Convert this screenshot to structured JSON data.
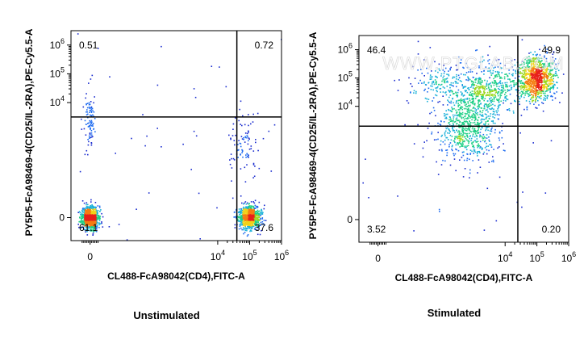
{
  "watermark": "WWW.PTGLAB.COM",
  "chart_data": [
    {
      "type": "scatter",
      "title": "",
      "caption": "Unstimulated",
      "xlabel": "CL488-FcA98042(CD4),FITC-A",
      "ylabel": "PY5P5-FcA98469-4(CD25/IL-2RA),PE-Cy5.5-A",
      "xlim": [
        -0.6,
        6
      ],
      "ylim": [
        -0.8,
        6.5
      ],
      "x_ticks": [
        {
          "value": 0,
          "label": "0"
        },
        {
          "value": 4,
          "label": "10^4"
        },
        {
          "value": 5,
          "label": "10^5"
        },
        {
          "value": 6,
          "label": "10^6"
        }
      ],
      "y_ticks": [
        {
          "value": 0,
          "label": "0"
        },
        {
          "value": 4,
          "label": "10^4"
        },
        {
          "value": 5,
          "label": "10^5"
        },
        {
          "value": 6,
          "label": "10^6"
        }
      ],
      "gate": {
        "x": 4.6,
        "y": 3.5
      },
      "quadrants": [
        {
          "position": "top-left",
          "value": "0.51"
        },
        {
          "position": "top-right",
          "value": "0.72"
        },
        {
          "position": "bottom-left",
          "value": "61.1"
        },
        {
          "position": "bottom-right",
          "value": "37.6"
        }
      ],
      "populations": [
        {
          "center": [
            0.0,
            0.0
          ],
          "spread": [
            0.13,
            0.2
          ],
          "density": "high"
        },
        {
          "center": [
            5.0,
            0.0
          ],
          "spread": [
            0.17,
            0.2
          ],
          "density": "high"
        },
        {
          "center": [
            0.0,
            3.3
          ],
          "spread": [
            0.08,
            0.45
          ],
          "density": "low"
        },
        {
          "center": [
            4.8,
            2.6
          ],
          "spread": [
            0.25,
            0.7
          ],
          "density": "low"
        }
      ]
    },
    {
      "type": "scatter",
      "title": "",
      "caption": "Stimulated",
      "xlabel": "CL488-FcA98042(CD4),FITC-A",
      "ylabel": "PY5P5-FcA98469-4(CD25/IL-2RA),PE-Cy5.5-A",
      "xlim": [
        -0.6,
        6
      ],
      "ylim": [
        -0.8,
        6.5
      ],
      "x_ticks": [
        {
          "value": 0,
          "label": "0"
        },
        {
          "value": 4,
          "label": "10^4"
        },
        {
          "value": 5,
          "label": "10^5"
        },
        {
          "value": 6,
          "label": "10^6"
        }
      ],
      "y_ticks": [
        {
          "value": 0,
          "label": "0"
        },
        {
          "value": 4,
          "label": "10^4"
        },
        {
          "value": 5,
          "label": "10^5"
        },
        {
          "value": 6,
          "label": "10^6"
        }
      ],
      "gate": {
        "x": 4.4,
        "y": 3.3
      },
      "quadrants": [
        {
          "position": "top-left",
          "value": "46.4"
        },
        {
          "position": "top-right",
          "value": "49.9"
        },
        {
          "position": "bottom-left",
          "value": "3.52"
        },
        {
          "position": "bottom-right",
          "value": "0.20"
        }
      ],
      "populations": [
        {
          "center": [
            5.0,
            5.0
          ],
          "spread": [
            0.28,
            0.38
          ],
          "density": "high"
        },
        {
          "center": [
            3.3,
            4.6
          ],
          "spread": [
            0.75,
            0.45
          ],
          "density": "medium"
        },
        {
          "center": [
            2.8,
            3.2
          ],
          "spread": [
            0.45,
            0.6
          ],
          "density": "medium"
        },
        {
          "center": [
            1.6,
            4.8
          ],
          "spread": [
            0.45,
            0.35
          ],
          "density": "low"
        }
      ]
    }
  ]
}
